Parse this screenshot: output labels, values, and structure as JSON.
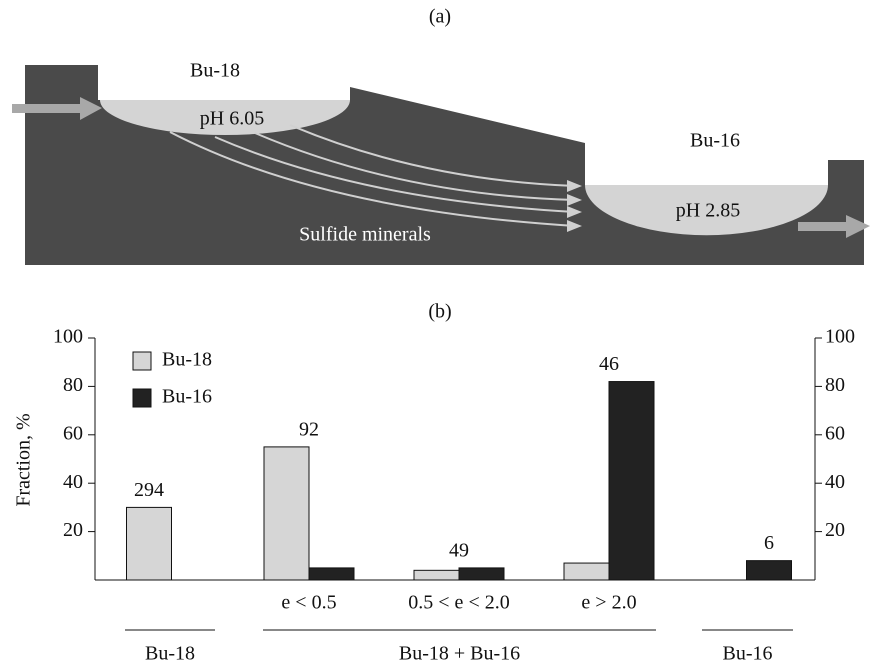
{
  "diagram": {
    "title": "(a)",
    "lake1": {
      "name": "Bu-18",
      "ph": "pH 6.05"
    },
    "lake2": {
      "name": "Bu-16",
      "ph": "pH 2.85"
    },
    "note": "Sulfide minerals"
  },
  "chart_data": {
    "type": "bar",
    "title": "(b)",
    "y_label": "Fraction, %",
    "categories": [
      null,
      "e < 0.5",
      "0.5 < e < 2.0",
      "e > 2.0",
      null
    ],
    "series": [
      {
        "name": "Bu-18",
        "color": "#d6d6d6",
        "values": [
          30,
          55,
          4,
          7,
          null
        ]
      },
      {
        "name": "Bu-16",
        "color": "#222222",
        "values": [
          null,
          5,
          5,
          82,
          8
        ]
      }
    ],
    "group_counts": [
      294,
      92,
      49,
      46,
      6
    ],
    "groups": [
      "Bu-18",
      "Bu-18 + Bu-16",
      "Bu-16"
    ],
    "ylim": [
      0,
      100
    ],
    "yticks": [
      20,
      40,
      60,
      80,
      100
    ],
    "y2lim": [
      0,
      100
    ],
    "y2ticks": [
      20,
      40,
      60,
      80,
      100
    ],
    "legend": "upper left",
    "grid": false
  }
}
